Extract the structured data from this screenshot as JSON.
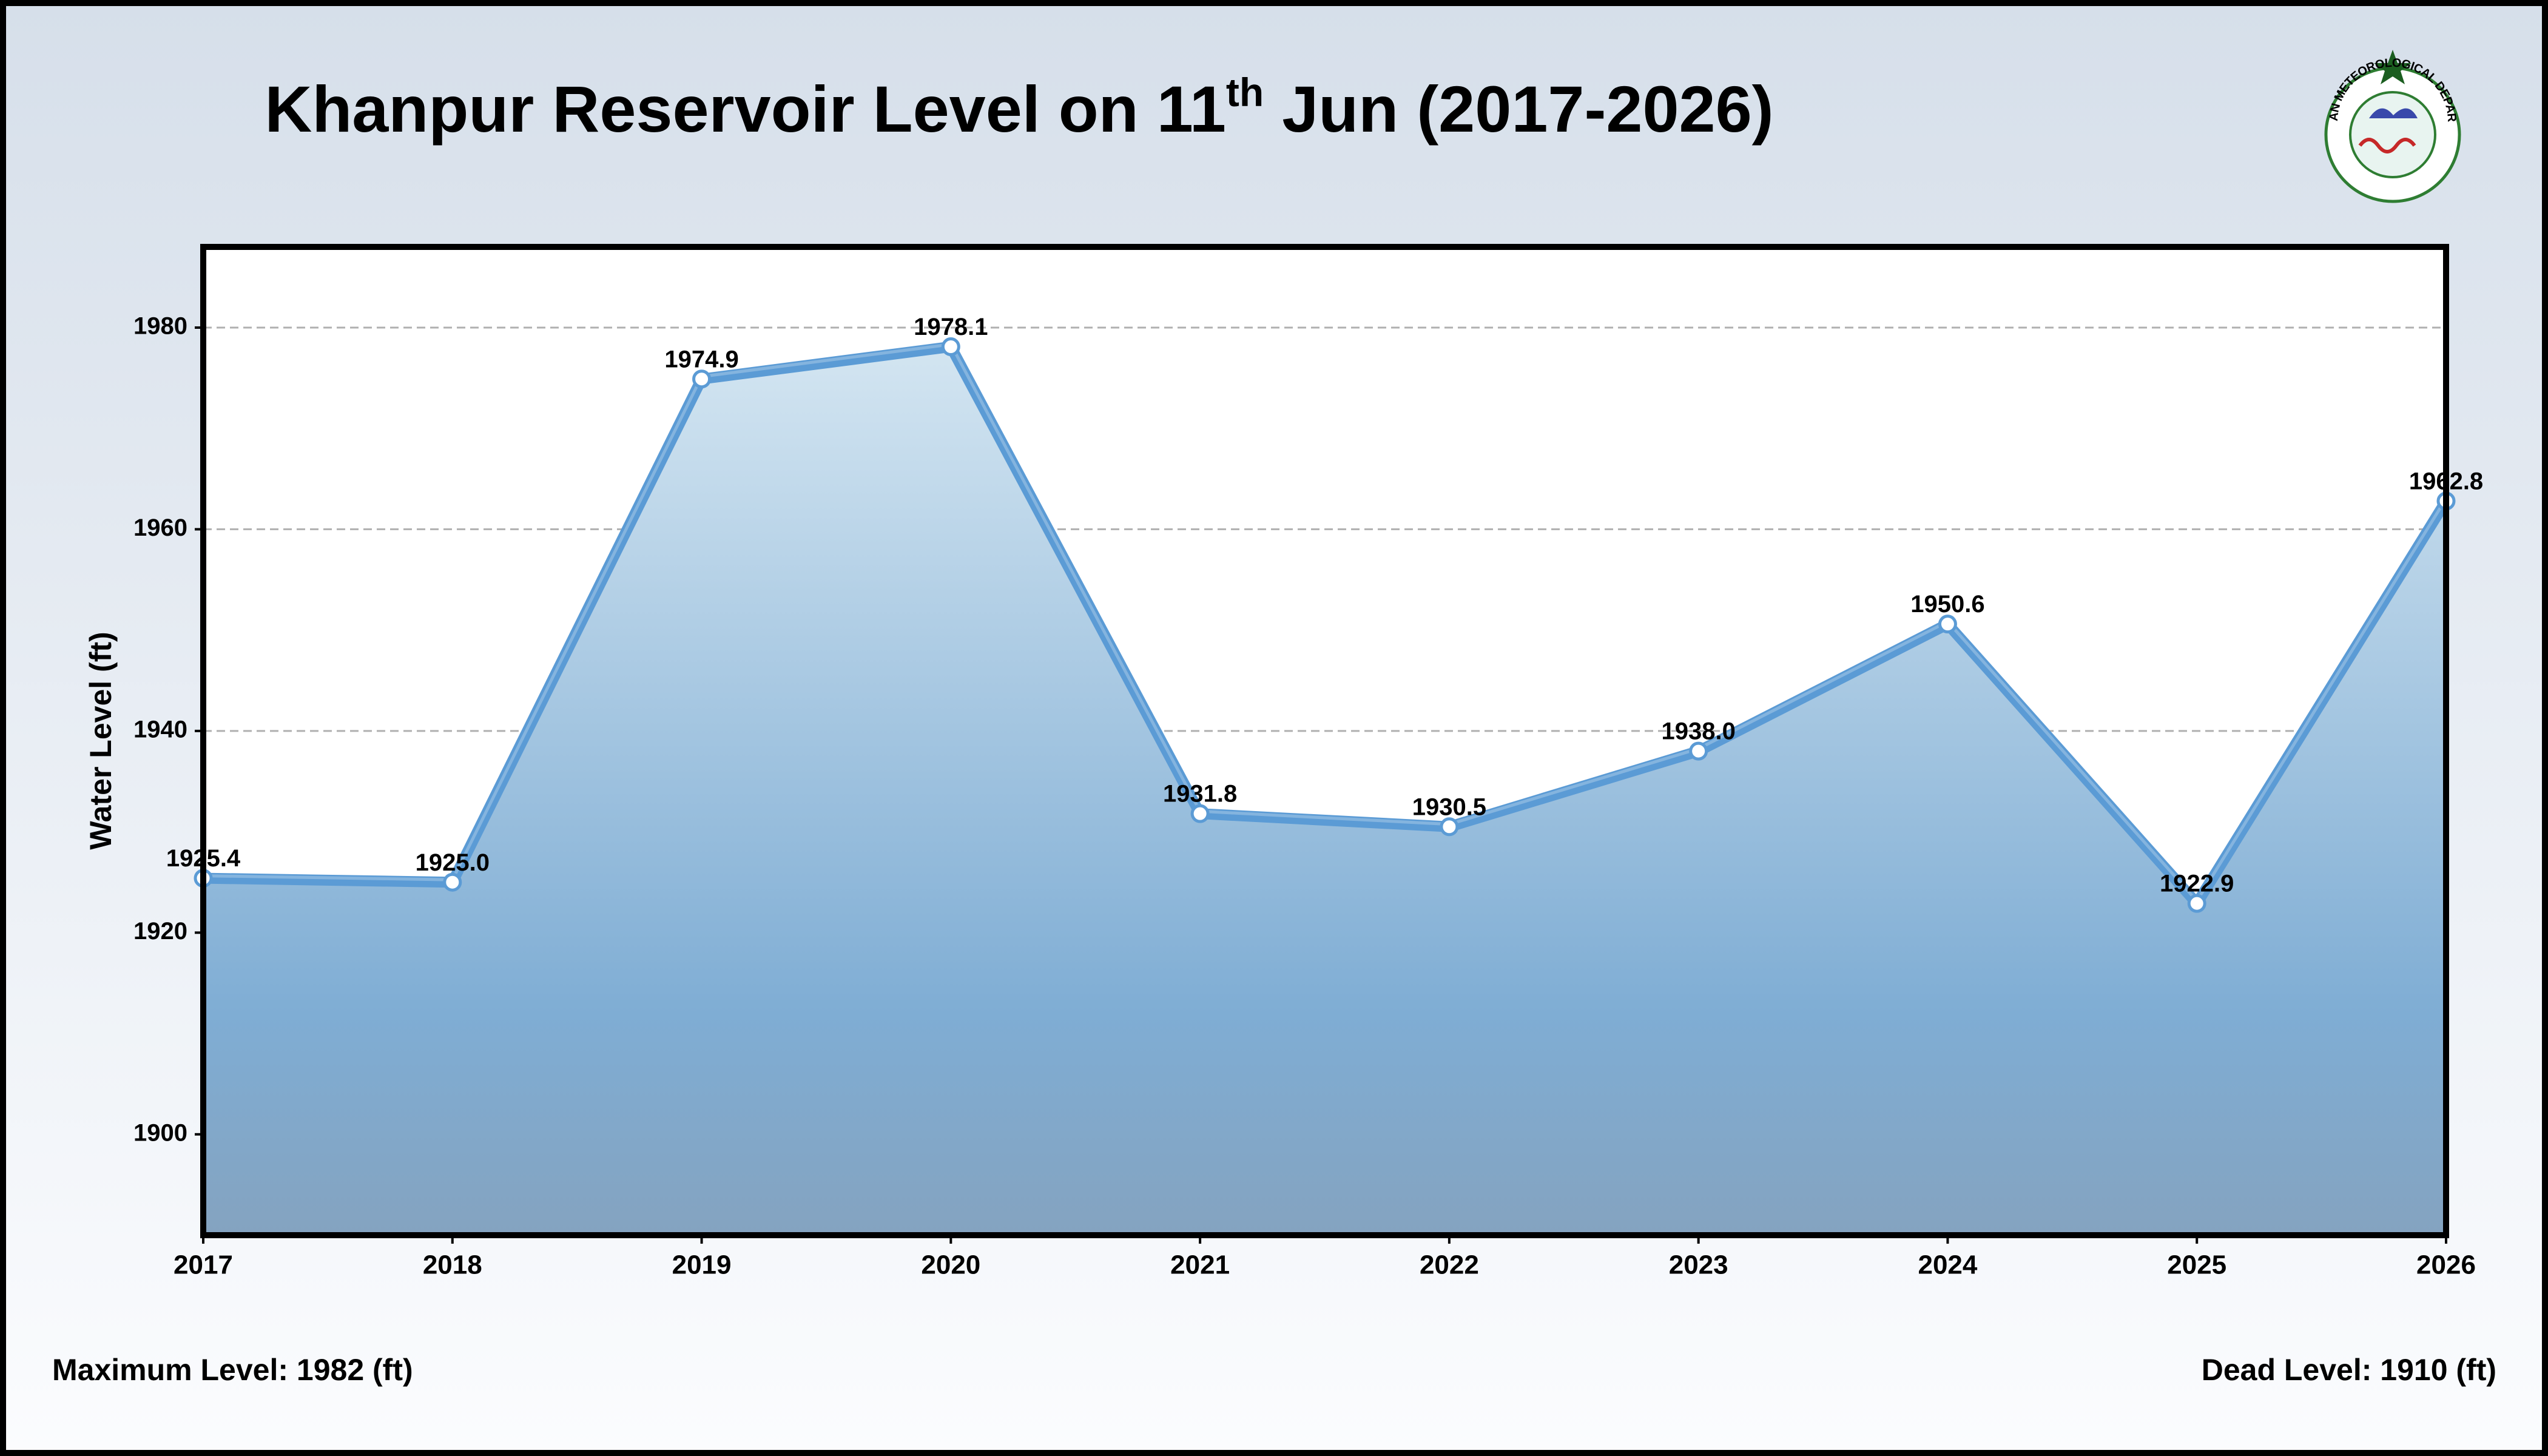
{
  "chart_data": {
    "type": "line",
    "title_parts": [
      "Khanpur Reservoir Level on 11",
      "th",
      " Jun (2017-2026)"
    ],
    "y_label": "Water Level (ft)",
    "logo_text": "PAKISTAN METEOROLOGICAL DEPARTMENT",
    "annotations": [
      "Maximum Level: 1982 (ft)",
      "Dead Level: 1910 (ft)"
    ],
    "x": [
      2017,
      2018,
      2019,
      2020,
      2021,
      2022,
      2023,
      2024,
      2025,
      2026
    ],
    "series": [
      {
        "name": "Water Level",
        "color": "#5b9bd5",
        "values": [
          1925.4,
          1925,
          1974.9,
          1978.1,
          1931.8,
          1930.5,
          1938,
          1950.6,
          1922.9,
          1962.8
        ],
        "value_labels": [
          "1925.4",
          "1925.0",
          "1974.9",
          "1978.1",
          "1931.8",
          "1930.5",
          "1938.0",
          "1950.6",
          "1922.9",
          "1962.8"
        ]
      }
    ],
    "xlim": [
      2017,
      2026
    ],
    "xticks": [
      2017,
      2018,
      2019,
      2020,
      2021,
      2022,
      2023,
      2024,
      2025,
      2026
    ],
    "ylim": [
      1890,
      1988
    ],
    "yticks": [
      1900,
      1920,
      1940,
      1960,
      1980
    ],
    "grid": true
  }
}
